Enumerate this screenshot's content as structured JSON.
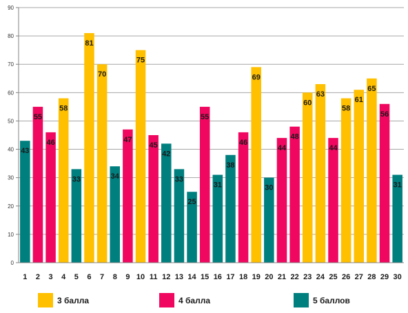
{
  "chart_data": {
    "type": "bar",
    "title": "",
    "xlabel": "",
    "ylabel": "",
    "ylim": [
      0,
      90
    ],
    "yticks": [
      0,
      10,
      20,
      30,
      40,
      50,
      60,
      70,
      80,
      90
    ],
    "grid": true,
    "legend_position": "bottom",
    "categories": [
      "1",
      "2",
      "3",
      "4",
      "5",
      "6",
      "7",
      "8",
      "9",
      "10",
      "11",
      "12",
      "13",
      "14",
      "15",
      "16",
      "17",
      "18",
      "19",
      "20",
      "21",
      "22",
      "23",
      "24",
      "25",
      "26",
      "27",
      "28",
      "29",
      "30"
    ],
    "values": [
      43,
      55,
      46,
      58,
      33,
      81,
      70,
      34,
      47,
      75,
      45,
      42,
      33,
      25,
      55,
      31,
      38,
      46,
      69,
      30,
      44,
      48,
      60,
      63,
      44,
      58,
      61,
      65,
      56,
      31
    ],
    "bar_groups": [
      5,
      4,
      4,
      3,
      5,
      3,
      3,
      5,
      4,
      3,
      4,
      5,
      5,
      5,
      4,
      5,
      5,
      4,
      3,
      5,
      4,
      4,
      3,
      3,
      4,
      3,
      3,
      3,
      4,
      5
    ],
    "legend": [
      {
        "key": "3",
        "label": "3 балла",
        "color": "#FFC000"
      },
      {
        "key": "4",
        "label": "4 балла",
        "color": "#F0075F"
      },
      {
        "key": "5",
        "label": "5 баллов",
        "color": "#007F7F"
      }
    ]
  }
}
